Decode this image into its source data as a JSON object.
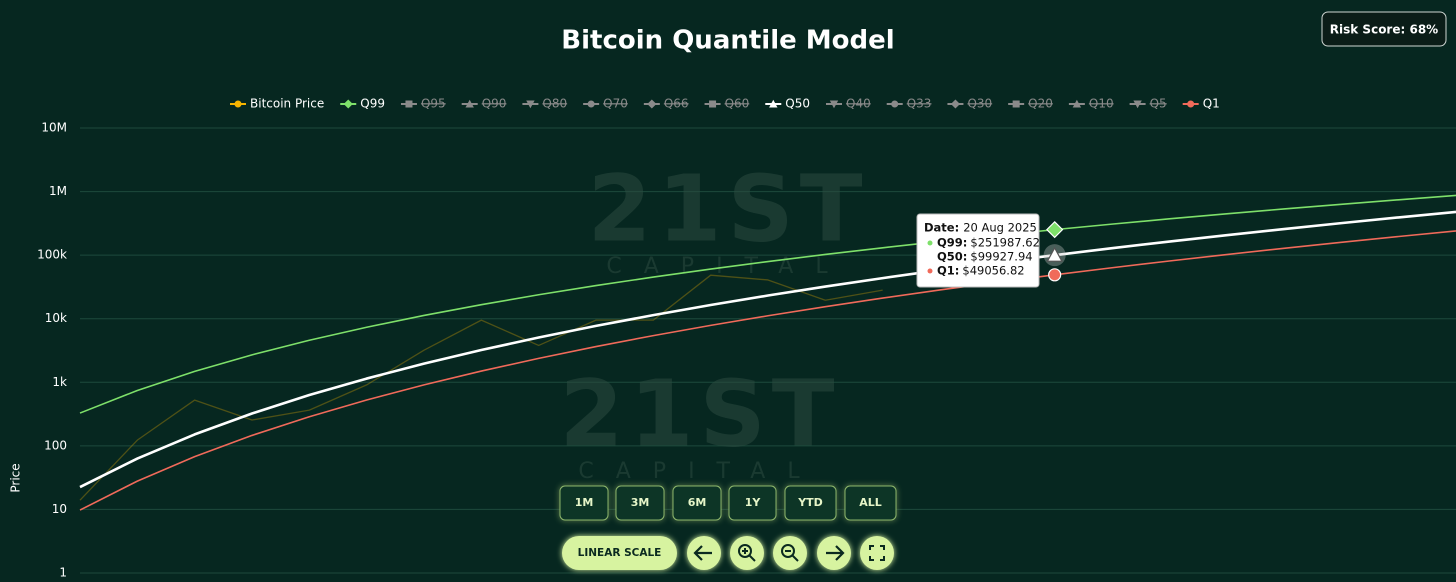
{
  "chart_data": {
    "type": "line",
    "title": "Bitcoin Quantile Model",
    "y_label": "Price",
    "log_scale": true,
    "grid": true,
    "categories": [
      null,
      null,
      null,
      null,
      null,
      null,
      null,
      null,
      null,
      null,
      null,
      null,
      null,
      null,
      null,
      null,
      null,
      null,
      null,
      null,
      null,
      null,
      null,
      null,
      null
    ],
    "ylim": [
      1,
      10000000
    ],
    "yticks": [
      1,
      10,
      100,
      {
        "value": 1000,
        "label": "1k"
      },
      {
        "value": 10000,
        "label": "10k"
      },
      {
        "value": 100000,
        "label": "100k"
      },
      {
        "value": 1000000,
        "label": "1M"
      },
      {
        "value": 10000000,
        "label": "10M"
      }
    ],
    "series": [
      {
        "name": "Bitcoin Price",
        "color": "#f5b400",
        "marker": "circle",
        "values": [
          14,
          123,
          525,
          255,
          365,
          910,
          3200,
          9500,
          3800,
          9500,
          9500,
          48400,
          40700,
          19500,
          28200,
          null,
          null,
          null,
          null,
          null,
          null,
          null,
          null,
          null,
          null
        ]
      },
      {
        "name": "Q99",
        "color": "#7ee06a",
        "marker": "diamond",
        "values": [
          328,
          743,
          1484,
          2700,
          4580,
          7340,
          11260,
          16630,
          23810,
          33200,
          45250,
          60420,
          79300,
          102500,
          130600,
          164400,
          204500,
          251987.62,
          307600,
          372300,
          447200,
          533000,
          631300,
          743000,
          869900
        ]
      },
      {
        "name": "Q95",
        "color": "#8a8a8a",
        "marker": "square",
        "hidden": true
      },
      {
        "name": "Q90",
        "color": "#8a8a8a",
        "marker": "triangle",
        "hidden": true
      },
      {
        "name": "Q80",
        "color": "#8a8a8a",
        "marker": "triangle-down",
        "hidden": true
      },
      {
        "name": "Q70",
        "color": "#8a8a8a",
        "marker": "circle",
        "hidden": true
      },
      {
        "name": "Q66",
        "color": "#8a8a8a",
        "marker": "diamond",
        "hidden": true
      },
      {
        "name": "Q60",
        "color": "#8a8a8a",
        "marker": "square",
        "hidden": true
      },
      {
        "name": "Q50",
        "color": "#ffffff",
        "marker": "triangle",
        "values": [
          22.5,
          63.2,
          151.5,
          323,
          630,
          1144,
          1964,
          3217,
          5062,
          7707,
          11400,
          16430,
          23170,
          32030,
          43520,
          58210,
          76770,
          99927.94,
          128600,
          163600,
          206200,
          257600,
          319000,
          392200,
          478300
        ]
      },
      {
        "name": "Q40",
        "color": "#8a8a8a",
        "marker": "triangle-down",
        "hidden": true
      },
      {
        "name": "Q33",
        "color": "#8a8a8a",
        "marker": "circle",
        "hidden": true
      },
      {
        "name": "Q30",
        "color": "#8a8a8a",
        "marker": "diamond",
        "hidden": true
      },
      {
        "name": "Q20",
        "color": "#8a8a8a",
        "marker": "square",
        "hidden": true
      },
      {
        "name": "Q10",
        "color": "#8a8a8a",
        "marker": "triangle",
        "hidden": true
      },
      {
        "name": "Q5",
        "color": "#8a8a8a",
        "marker": "triangle-down",
        "hidden": true
      },
      {
        "name": "Q1",
        "color": "#f06a5a",
        "marker": "circle",
        "values": [
          9.77,
          27.9,
          67.7,
          145.9,
          287,
          526,
          911,
          1502,
          2380,
          3646,
          5423,
          7858,
          11130,
          15470,
          21110,
          28360,
          37540,
          49056.82,
          63340,
          80910,
          102300,
          128200,
          159300,
          196400,
          240300
        ]
      }
    ],
    "tooltip": {
      "date_label": "Date:",
      "date": "20 Aug 2025",
      "items": [
        {
          "name": "Q99:",
          "value": 251987.62,
          "value_label": "$251987.62"
        },
        {
          "name": "Q50:",
          "value": 99927.94,
          "value_label": "$99927.94"
        },
        {
          "name": "Q1:",
          "value": 49056.82,
          "value_label": "$49056.82"
        }
      ]
    },
    "watermark": {
      "text": "21ST",
      "subtext": "CAPITAL"
    }
  },
  "risk_score": "Risk Score: 68%",
  "controls": {
    "ranges": [
      "1M",
      "3M",
      "6M",
      "1Y",
      "YTD",
      "ALL"
    ],
    "scale_button": "LINEAR SCALE"
  }
}
